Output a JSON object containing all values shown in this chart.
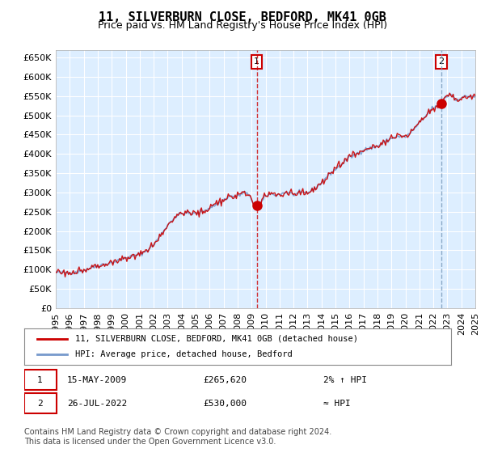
{
  "title": "11, SILVERBURN CLOSE, BEDFORD, MK41 0GB",
  "subtitle": "Price paid vs. HM Land Registry's House Price Index (HPI)",
  "background_color": "#ffffff",
  "plot_bg_color": "#ddeeff",
  "grid_color": "#ffffff",
  "red_line_color": "#cc0000",
  "blue_line_color": "#7799cc",
  "highlight_bg_color": "#ddeeff",
  "ylim": [
    0,
    670000
  ],
  "yticks": [
    0,
    50000,
    100000,
    150000,
    200000,
    250000,
    300000,
    350000,
    400000,
    450000,
    500000,
    550000,
    600000,
    650000
  ],
  "ytick_labels": [
    "£0",
    "£50K",
    "£100K",
    "£150K",
    "£200K",
    "£250K",
    "£300K",
    "£350K",
    "£400K",
    "£450K",
    "£500K",
    "£550K",
    "£600K",
    "£650K"
  ],
  "year_start": 1995,
  "year_end": 2025,
  "sale1_year": 2009.37,
  "sale1_price": 265620,
  "sale1_label": "1",
  "sale1_date": "15-MAY-2009",
  "sale1_hpi_diff": "2% ↑ HPI",
  "sale2_year": 2022.56,
  "sale2_price": 530000,
  "sale2_label": "2",
  "sale2_date": "26-JUL-2022",
  "sale2_hpi_diff": "≈ HPI",
  "legend_red": "11, SILVERBURN CLOSE, BEDFORD, MK41 0GB (detached house)",
  "legend_blue": "HPI: Average price, detached house, Bedford",
  "footer": "Contains HM Land Registry data © Crown copyright and database right 2024.\nThis data is licensed under the Open Government Licence v3.0.",
  "title_fontsize": 11,
  "subtitle_fontsize": 9,
  "axis_fontsize": 8,
  "footer_fontsize": 7
}
